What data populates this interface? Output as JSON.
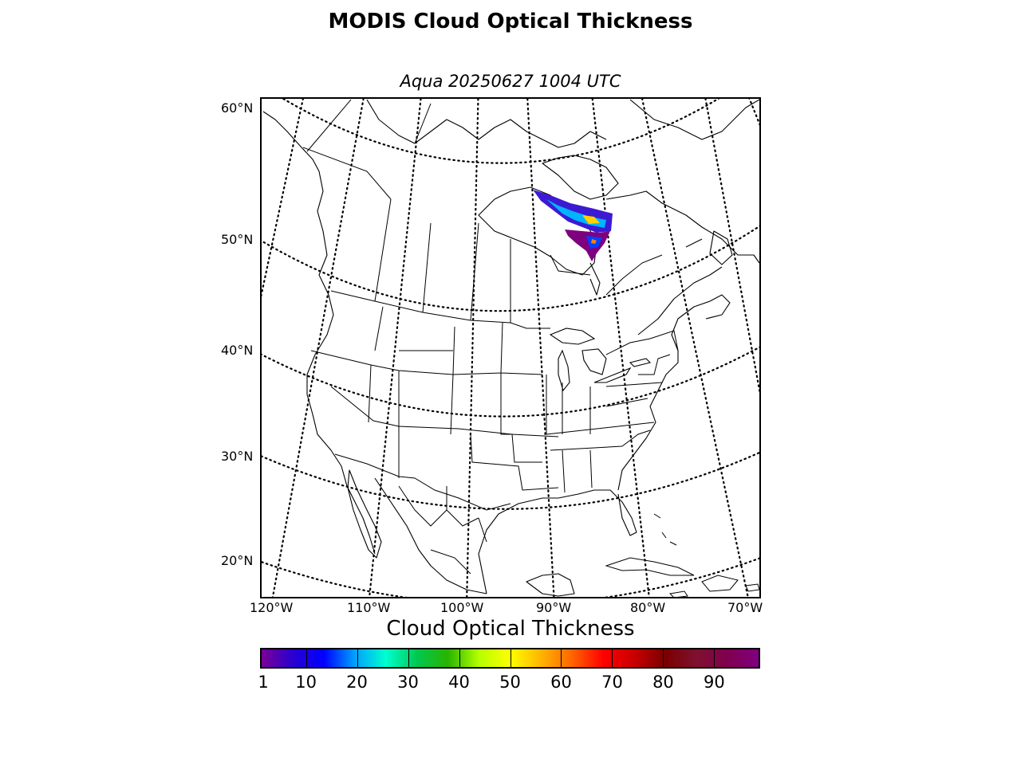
{
  "title": "MODIS Cloud Optical Thickness",
  "subtitle": "Aqua 20250627 1004 UTC",
  "map": {
    "projection": "lambert-conformal",
    "region": "North America",
    "background_color": "#ffffff",
    "graticule_style": "dotted",
    "coastline_color": "#000000",
    "lat_labels": [
      "60°N",
      "50°N",
      "40°N",
      "30°N",
      "20°N"
    ],
    "lon_labels": [
      "120°W",
      "110°W",
      "100°W",
      "90°W",
      "80°W",
      "70°W"
    ],
    "data_swath": {
      "description_region": "Hudson Bay / northern Quebec",
      "dominant_colors": [
        "#7f007f",
        "#4b0096",
        "#0000ff",
        "#00c8ff",
        "#ffff00",
        "#ff8000"
      ]
    }
  },
  "colorbar": {
    "title": "Cloud Optical Thickness",
    "min": 1,
    "max": 99,
    "ticks": [
      "1",
      "10",
      "20",
      "30",
      "40",
      "50",
      "60",
      "70",
      "80",
      "90"
    ],
    "tick_values": [
      1,
      10,
      20,
      30,
      40,
      50,
      60,
      70,
      80,
      90
    ],
    "colormap_stops": [
      "#7a0096",
      "#2a00d0",
      "#0000ff",
      "#00a0ff",
      "#00ffd0",
      "#00c850",
      "#28b400",
      "#b4ff00",
      "#ffff00",
      "#ffb400",
      "#ff6400",
      "#ff0000",
      "#c80000",
      "#7a0000",
      "#7f1030",
      "#800050",
      "#7f007f"
    ]
  }
}
